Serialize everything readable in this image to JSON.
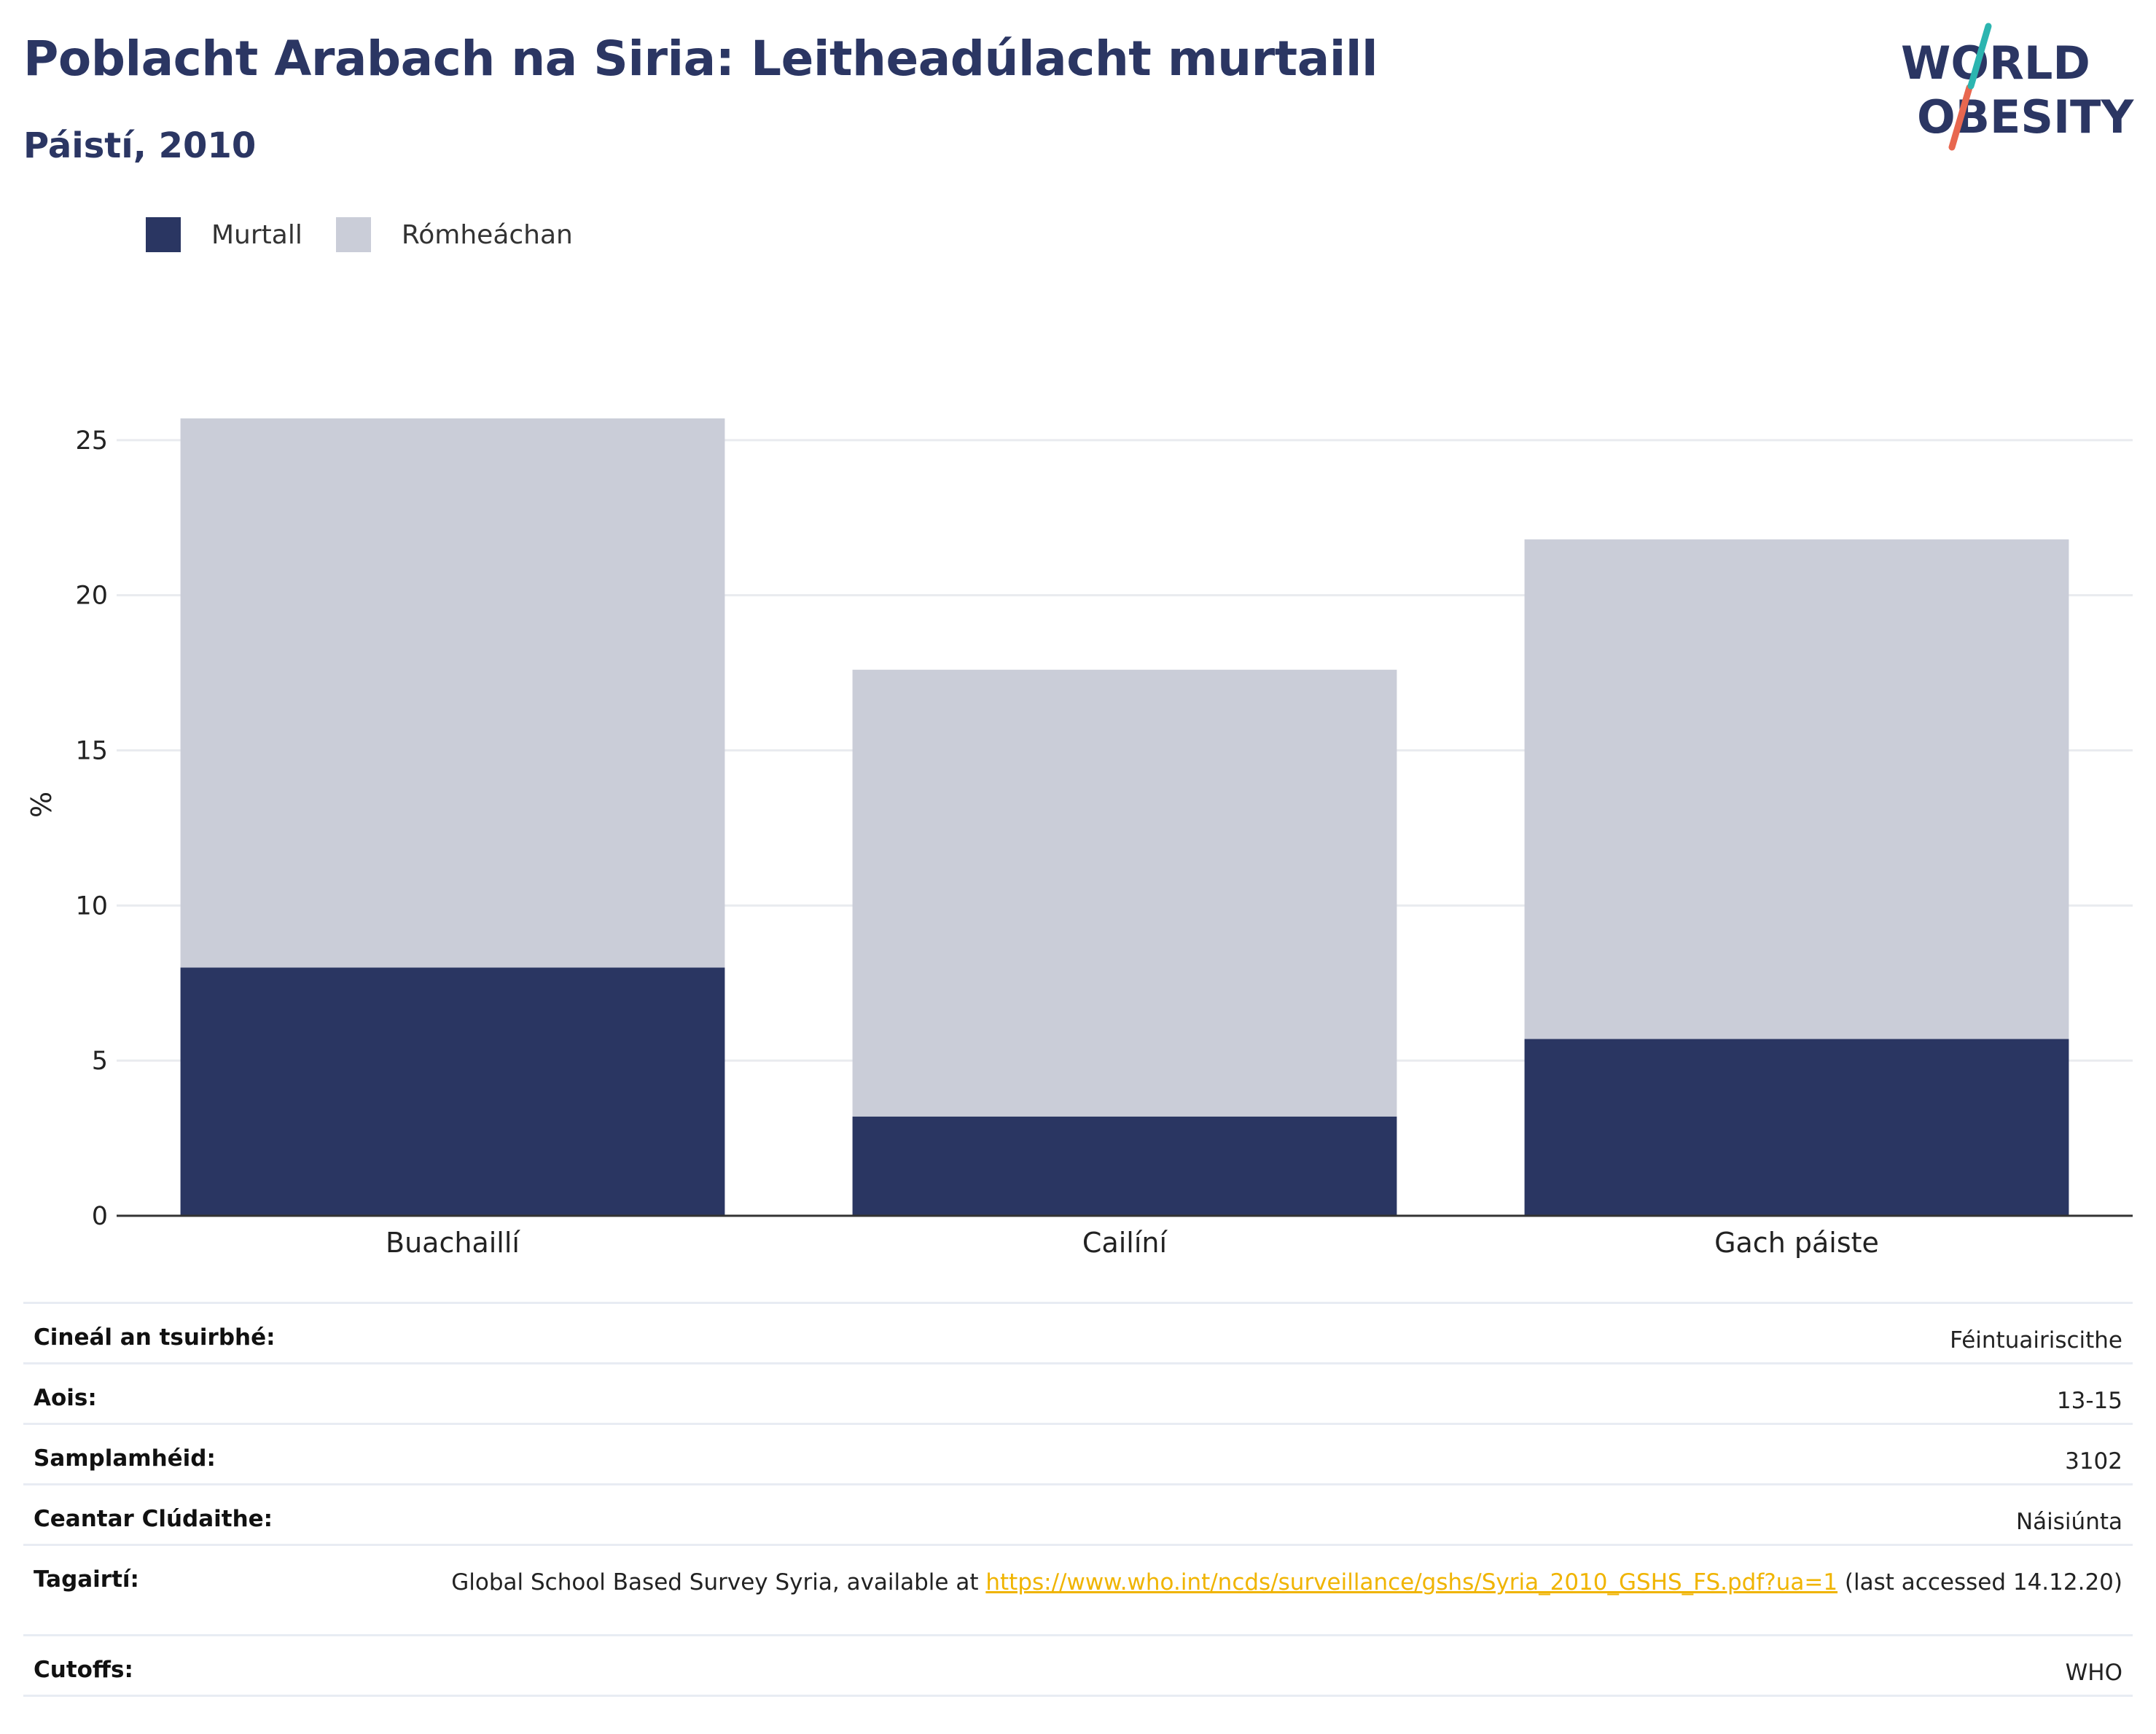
{
  "header": {
    "title": "Poblacht Arabach na Siria: Leitheadúlacht murtaill",
    "subtitle": "Páistí, 2010"
  },
  "logo": {
    "line1": "WORLD",
    "line2": "OBESITY",
    "colors": {
      "text": "#2b3663",
      "slash_top": "#2cb5b0",
      "slash_bottom": "#e8674f"
    }
  },
  "legend": [
    {
      "label": "Murtall",
      "color": "#2a3662"
    },
    {
      "label": "Rómheáchan",
      "color": "#cacdd8"
    }
  ],
  "chart_data": {
    "type": "bar",
    "stacked": true,
    "categories": [
      "Buachaillí",
      "Cailíní",
      "Gach páiste"
    ],
    "series": [
      {
        "name": "Murtall",
        "color": "#2a3662",
        "values": [
          8.0,
          3.2,
          5.7
        ]
      },
      {
        "name": "Rómheáchan",
        "color": "#cacdd8",
        "values": [
          17.7,
          14.4,
          16.1
        ]
      }
    ],
    "ylabel": "%",
    "xlabel": "",
    "ylim": [
      0,
      26.5
    ],
    "yticks": [
      0,
      5,
      10,
      15,
      20,
      25
    ],
    "grid": true,
    "legend_position": "top-left"
  },
  "info": {
    "survey_type": {
      "label": "Cineál an tsuirbhé:",
      "value": "Féintuairiscithe"
    },
    "age": {
      "label": "Aois:",
      "value": "13-15"
    },
    "sample_size": {
      "label": "Samplamhéid:",
      "value": "3102"
    },
    "area": {
      "label": "Ceantar Clúdaithe:",
      "value": "Náisiúnta"
    },
    "references": {
      "label": "Tagairtí:",
      "text_before": "Global School Based Survey Syria, available at ",
      "link": "https://www.who.int/ncds/surveillance/gshs/Syria_2010_GSHS_FS.pdf?ua=1",
      "text_after": " (last accessed 14.12.20)"
    },
    "cutoffs": {
      "label": "Cutoffs:",
      "value": "WHO"
    }
  }
}
